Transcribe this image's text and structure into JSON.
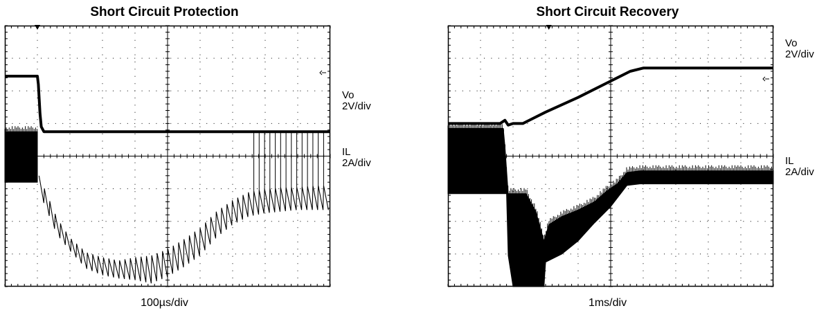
{
  "chart_data": [
    {
      "type": "line",
      "title": "Short Circuit Protection",
      "xlabel": "100µs/div",
      "x_divisions": 10,
      "y_divisions": 8,
      "grid": true,
      "series": [
        {
          "name": "Vo",
          "scale": "2V/div",
          "style": "thick",
          "points": [
            [
              0,
              6.45
            ],
            [
              1.0,
              6.45
            ],
            [
              1.03,
              6.2
            ],
            [
              1.08,
              5.3
            ],
            [
              1.12,
              4.9
            ],
            [
              1.2,
              4.75
            ],
            [
              10,
              4.75
            ]
          ]
        },
        {
          "name": "IL",
          "scale": "2A/div",
          "style": "band",
          "upper": [
            [
              0,
              4.75
            ],
            [
              1.0,
              4.75
            ]
          ],
          "lower": [
            [
              0,
              3.2
            ],
            [
              1.0,
              3.2
            ]
          ]
        },
        {
          "name": "IL",
          "scale": "2A/div",
          "style": "sawtooth",
          "peaks": [
            [
              1.05,
              3.4
            ],
            [
              1.6,
              2.1
            ],
            [
              2.0,
              1.5
            ],
            [
              2.5,
              1.05
            ],
            [
              3.0,
              0.9
            ],
            [
              3.5,
              0.8
            ],
            [
              4.0,
              0.9
            ],
            [
              4.5,
              0.95
            ],
            [
              5.0,
              1.15
            ],
            [
              5.5,
              1.45
            ],
            [
              6.0,
              1.8
            ],
            [
              6.5,
              2.3
            ],
            [
              7.0,
              2.65
            ],
            [
              7.5,
              2.9
            ],
            [
              8.0,
              3.0
            ],
            [
              8.5,
              3.05
            ],
            [
              9.0,
              3.05
            ],
            [
              9.5,
              3.1
            ],
            [
              9.9,
              3.1
            ]
          ],
          "valleys": [
            [
              1.1,
              2.8
            ],
            [
              1.6,
              1.6
            ],
            [
              2.0,
              1.1
            ],
            [
              2.5,
              0.55
            ],
            [
              3.0,
              0.35
            ],
            [
              3.5,
              0.25
            ],
            [
              4.0,
              0.2
            ],
            [
              4.5,
              0.1
            ],
            [
              5.0,
              0.3
            ],
            [
              5.5,
              0.6
            ],
            [
              6.0,
              0.95
            ],
            [
              6.5,
              1.5
            ],
            [
              7.0,
              1.9
            ],
            [
              7.5,
              2.15
            ],
            [
              8.0,
              2.25
            ],
            [
              8.5,
              2.3
            ],
            [
              9.0,
              2.35
            ],
            [
              9.5,
              2.35
            ],
            [
              9.9,
              2.35
            ]
          ],
          "spike_start": 7.65,
          "spike_end": 9.9,
          "spike_top": 4.75
        }
      ],
      "channel_labels": [
        {
          "name": "Vo",
          "scale": "2V/div"
        },
        {
          "name": "IL",
          "scale": "2A/div"
        }
      ]
    },
    {
      "type": "line",
      "title": "Short Circuit Recovery",
      "xlabel": "1ms/div",
      "x_divisions": 10,
      "y_divisions": 8,
      "grid": true,
      "series": [
        {
          "name": "Vo",
          "scale": "2V/div",
          "style": "thick",
          "points": [
            [
              0,
              5.0
            ],
            [
              1.6,
              5.0
            ],
            [
              1.75,
              5.1
            ],
            [
              1.85,
              4.95
            ],
            [
              2.0,
              5.0
            ],
            [
              2.3,
              5.0
            ],
            [
              3.0,
              5.35
            ],
            [
              4.0,
              5.8
            ],
            [
              5.0,
              6.3
            ],
            [
              5.6,
              6.6
            ],
            [
              6.0,
              6.7
            ],
            [
              10,
              6.7
            ]
          ]
        },
        {
          "name": "IL",
          "scale": "2A/div",
          "style": "band",
          "upper": [
            [
              0,
              4.85
            ],
            [
              1.7,
              4.85
            ],
            [
              1.75,
              4.3
            ],
            [
              1.85,
              2.85
            ],
            [
              2.4,
              2.85
            ],
            [
              2.7,
              2.3
            ],
            [
              2.95,
              1.4
            ],
            [
              3.1,
              1.9
            ],
            [
              3.5,
              2.15
            ],
            [
              4.0,
              2.35
            ],
            [
              4.5,
              2.6
            ],
            [
              4.9,
              2.95
            ],
            [
              5.2,
              3.15
            ],
            [
              5.5,
              3.5
            ],
            [
              5.9,
              3.55
            ],
            [
              10,
              3.55
            ]
          ],
          "lower": [
            [
              0,
              2.85
            ],
            [
              1.8,
              2.85
            ],
            [
              1.85,
              0.95
            ],
            [
              2.0,
              0.0
            ],
            [
              2.95,
              0.0
            ],
            [
              3.0,
              0.75
            ],
            [
              3.5,
              1.0
            ],
            [
              4.0,
              1.4
            ],
            [
              4.5,
              1.95
            ],
            [
              5.0,
              2.45
            ],
            [
              5.5,
              3.1
            ],
            [
              5.9,
              3.15
            ],
            [
              10,
              3.15
            ]
          ]
        }
      ],
      "channel_labels": [
        {
          "name": "Vo",
          "scale": "2V/div"
        },
        {
          "name": "IL",
          "scale": "2A/div"
        }
      ]
    }
  ]
}
